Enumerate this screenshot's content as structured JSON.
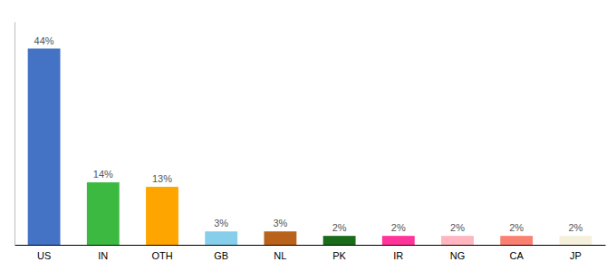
{
  "chart_data": {
    "type": "bar",
    "categories": [
      "US",
      "IN",
      "OTH",
      "GB",
      "NL",
      "PK",
      "IR",
      "NG",
      "CA",
      "JP"
    ],
    "values": [
      44,
      14,
      13,
      3,
      3,
      2,
      2,
      2,
      2,
      2
    ],
    "value_labels": [
      "44%",
      "14%",
      "13%",
      "3%",
      "3%",
      "2%",
      "2%",
      "2%",
      "2%",
      "2%"
    ],
    "colors": [
      "#4472C4",
      "#3CB941",
      "#FFA500",
      "#87CEEB",
      "#B8621B",
      "#1A6B1A",
      "#FF3399",
      "#FFB6C1",
      "#FA8072",
      "#F5F0DC"
    ],
    "ylim": [
      0,
      50
    ],
    "data_labels": true,
    "tick_labels": "x",
    "grid": false
  }
}
